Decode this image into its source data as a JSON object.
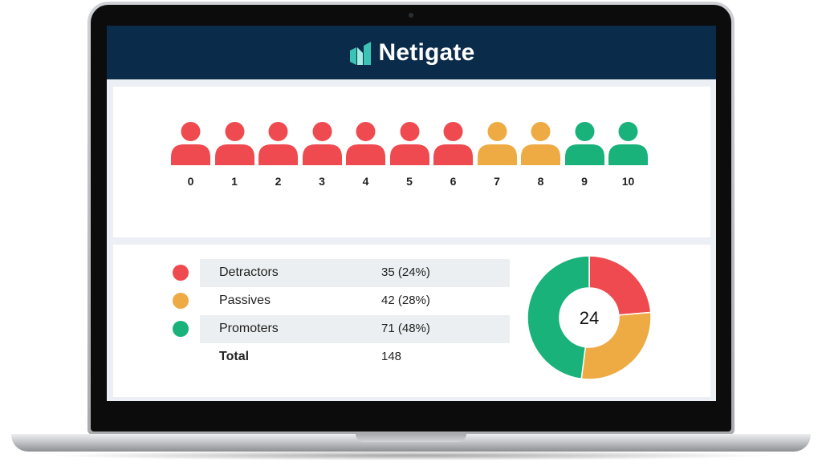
{
  "brand": {
    "name": "Netigate",
    "color_dark": "#0b2b4b",
    "color_accent": "#3bc4b6"
  },
  "scale": {
    "people": [
      {
        "score": "0",
        "group": "detractor",
        "color": "#ee4a4f"
      },
      {
        "score": "1",
        "group": "detractor",
        "color": "#ee4a4f"
      },
      {
        "score": "2",
        "group": "detractor",
        "color": "#ee4a4f"
      },
      {
        "score": "3",
        "group": "detractor",
        "color": "#ee4a4f"
      },
      {
        "score": "4",
        "group": "detractor",
        "color": "#ee4a4f"
      },
      {
        "score": "5",
        "group": "detractor",
        "color": "#ee4a4f"
      },
      {
        "score": "6",
        "group": "detractor",
        "color": "#ee4a4f"
      },
      {
        "score": "7",
        "group": "passive",
        "color": "#eeab44"
      },
      {
        "score": "8",
        "group": "passive",
        "color": "#eeab44"
      },
      {
        "score": "9",
        "group": "promoter",
        "color": "#19b27b"
      },
      {
        "score": "10",
        "group": "promoter",
        "color": "#19b27b"
      }
    ]
  },
  "summary": {
    "rows": [
      {
        "label": "Detractors",
        "value": "35 (24%)",
        "color": "#ee4a4f"
      },
      {
        "label": "Passives",
        "value": "42 (28%)",
        "color": "#eeab44"
      },
      {
        "label": "Promoters",
        "value": "71 (48%)",
        "color": "#19b27b"
      }
    ],
    "total": {
      "label": "Total",
      "value": "148"
    }
  },
  "donut": {
    "center_value": "24",
    "segments": [
      {
        "label": "Detractors",
        "value": 35,
        "color": "#ee4a4f"
      },
      {
        "label": "Passives",
        "value": 42,
        "color": "#eeab44"
      },
      {
        "label": "Promoters",
        "value": 71,
        "color": "#19b27b"
      }
    ]
  }
}
